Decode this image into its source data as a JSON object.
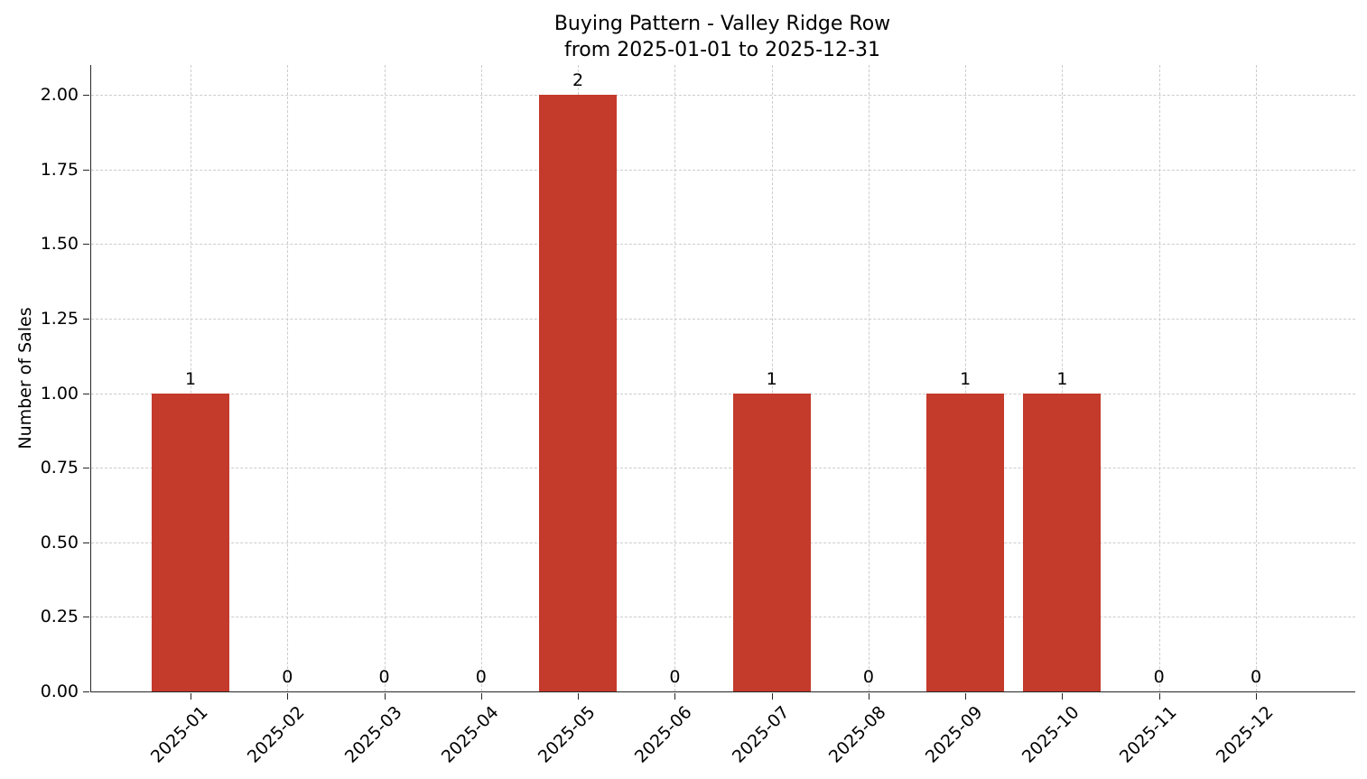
{
  "figure": {
    "title_line1": "Buying Pattern - Valley Ridge Row",
    "title_line2": "from 2025-01-01 to 2025-12-31",
    "background": "#ffffff"
  },
  "chart_data": {
    "type": "bar",
    "title": "Buying Pattern - Valley Ridge Row\nfrom 2025-01-01 to 2025-12-31",
    "categories": [
      "2025-01",
      "2025-02",
      "2025-03",
      "2025-04",
      "2025-05",
      "2025-06",
      "2025-07",
      "2025-08",
      "2025-09",
      "2025-10",
      "2025-11",
      "2025-12"
    ],
    "values": [
      1,
      0,
      0,
      0,
      2,
      0,
      1,
      0,
      1,
      1,
      0,
      0
    ],
    "bar_labels": [
      "1",
      "0",
      "0",
      "0",
      "2",
      "0",
      "1",
      "0",
      "1",
      "1",
      "0",
      "0"
    ],
    "xlabel": "",
    "ylabel": "Number of Sales",
    "ylim": [
      0,
      2.1
    ],
    "yticks": [
      0,
      0.25,
      0.5,
      0.75,
      1,
      1.25,
      1.5,
      1.75,
      2
    ],
    "ytick_labels": [
      "0.00",
      "0.25",
      "0.50",
      "0.75",
      "1.00",
      "1.25",
      "1.50",
      "1.75",
      "2.00"
    ],
    "x_tick_rotation": 45,
    "grid": true,
    "grid_style": "dashed",
    "legend": "none",
    "colors": {
      "bar": "#c43a2b",
      "grid": "#cccccc",
      "spine": "#262626",
      "text": "#000000"
    }
  }
}
